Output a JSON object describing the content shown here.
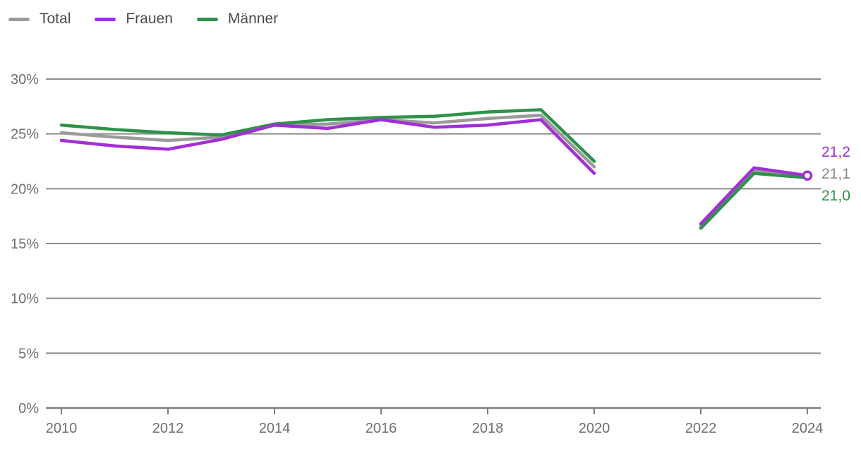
{
  "chart": {
    "legend": [
      {
        "label": "Total",
        "color": "#9b9b9b"
      },
      {
        "label": "Frauen",
        "color": "#a12fd6"
      },
      {
        "label": "Männer",
        "color": "#2e9249"
      }
    ],
    "chart_data": {
      "type": "line",
      "x": [
        2010,
        2011,
        2012,
        2013,
        2014,
        2015,
        2016,
        2017,
        2018,
        2019,
        2020,
        2021,
        2022,
        2023,
        2024
      ],
      "series": [
        {
          "name": "Total",
          "color": "#9b9b9b",
          "values": [
            25.1,
            24.7,
            24.4,
            24.7,
            25.8,
            25.9,
            26.3,
            26.0,
            26.4,
            26.7,
            22.0,
            null,
            16.6,
            21.6,
            21.1
          ]
        },
        {
          "name": "Frauen",
          "color": "#a12fd6",
          "values": [
            24.4,
            23.9,
            23.6,
            24.5,
            25.8,
            25.5,
            26.3,
            25.6,
            25.8,
            26.3,
            21.4,
            null,
            16.8,
            21.9,
            21.2
          ]
        },
        {
          "name": "Männer",
          "color": "#2e9249",
          "values": [
            25.8,
            25.4,
            25.1,
            24.9,
            25.9,
            26.3,
            26.5,
            26.6,
            27.0,
            27.2,
            22.5,
            null,
            16.4,
            21.4,
            21.0
          ]
        }
      ],
      "draw_order": [
        "Total",
        "Männer",
        "Frauen"
      ],
      "ylim": [
        0,
        30
      ],
      "grid": true,
      "gap_years": [
        2021
      ],
      "y_ticks": [
        {
          "label": "30%",
          "value": 30
        },
        {
          "label": "25%",
          "value": 25
        },
        {
          "label": "20%",
          "value": 20
        },
        {
          "label": "15%",
          "value": 15
        },
        {
          "label": "10%",
          "value": 10
        },
        {
          "label": "5%",
          "value": 5
        },
        {
          "label": "0%",
          "value": 0
        }
      ],
      "x_ticks": [
        {
          "label": "2010",
          "value": 2010
        },
        {
          "label": "2012",
          "value": 2012
        },
        {
          "label": "2014",
          "value": 2014
        },
        {
          "label": "2016",
          "value": 2016
        },
        {
          "label": "2018",
          "value": 2018
        },
        {
          "label": "2020",
          "value": 2020
        },
        {
          "label": "2022",
          "value": 2022
        },
        {
          "label": "2024",
          "value": 2024
        }
      ],
      "end_labels": [
        {
          "text": "21,2",
          "color": "#a12fd6",
          "series": "Frauen"
        },
        {
          "text": "21,1",
          "color": "#8a8a8a",
          "series": "Total"
        },
        {
          "text": "21,0",
          "color": "#2e9249",
          "series": "Männer"
        }
      ],
      "end_marker": {
        "series": "Frauen",
        "year": 2024,
        "value": 21.2
      },
      "legend_position": "top-left"
    },
    "colors": {
      "gridline": "#8c8c8c",
      "axis_line": "#7d7d7d",
      "axis_text": "#6f6f6f",
      "legend_text": "#4c4c4c"
    }
  }
}
